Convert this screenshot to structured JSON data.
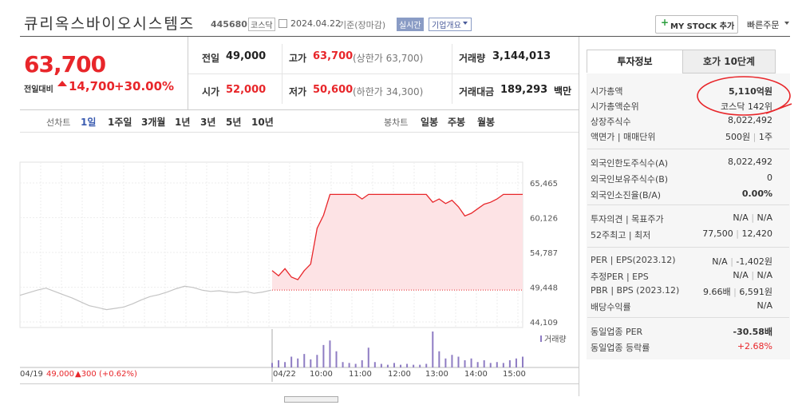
{
  "header": {
    "title": "큐리옥스바이오시스템즈",
    "code": "445680",
    "market": "코스닥",
    "date": "2024.04.22",
    "date_note": "기준(장마감)",
    "realtime": "실시간",
    "company_info": "기업개요",
    "my_stock": "MY STOCK 추가",
    "quick_order": "빠른주문"
  },
  "quote": {
    "price": "63,700",
    "change_label": "전일대비",
    "change": "14,700",
    "change_pct": "+30.00%",
    "table": [
      [
        {
          "label": "전일",
          "value": "49,000"
        },
        {
          "label": "고가",
          "value": "63,700",
          "note": "(상한가 63,700)"
        },
        {
          "label": "거래량",
          "value": "3,144,013"
        }
      ],
      [
        {
          "label": "시가",
          "value": "52,000"
        },
        {
          "label": "저가",
          "value": "50,600",
          "note": "(하한가 34,300)"
        },
        {
          "label": "거래대금",
          "value": "189,293",
          "unit": "백만"
        }
      ]
    ]
  },
  "tabs": {
    "line_chart": "선차트",
    "periods": [
      "1일",
      "1주일",
      "3개월",
      "1년",
      "3년",
      "5년",
      "10년"
    ],
    "candle_chart": "봉차트",
    "candles": [
      "일봉",
      "주봉",
      "월봉"
    ]
  },
  "chart": {
    "ylim": [
      43250,
      68656
    ],
    "yticks": [
      {
        "value": 65465,
        "label": "65,465"
      },
      {
        "value": 60126,
        "label": "60,126"
      },
      {
        "value": 54787,
        "label": "54,787"
      },
      {
        "value": 49448,
        "label": "49,448"
      },
      {
        "value": 44109,
        "label": "44,109"
      }
    ],
    "base": 49000,
    "x_labels": [
      "04/22",
      "10:00",
      "11:00",
      "12:00",
      "13:00",
      "14:00",
      "15:00"
    ],
    "prev_date": "04/19",
    "prev_close": "49,000",
    "prev_change": "▲300 (+0.62%)",
    "volume_label": "거래량",
    "series": [
      {
        "color": "#c4c4c4",
        "values": [
          48200,
          48600,
          49000,
          49300,
          48800,
          48300,
          47800,
          47200,
          46600,
          46300,
          46000,
          46200,
          46400,
          46900,
          47500,
          48000,
          48300,
          48700,
          49200,
          49600,
          49400,
          49000,
          48800,
          48900,
          48700,
          48600,
          48800,
          48500,
          48700,
          49000
        ]
      },
      {
        "color": "#e8262a",
        "fill": "#fde3e5",
        "values": [
          52000,
          51200,
          52300,
          51000,
          50600,
          52000,
          53000,
          58500,
          60500,
          63700,
          63700,
          63700,
          63700,
          63700,
          63000,
          63700,
          63700,
          63700,
          63700,
          63700,
          63700,
          63700,
          63700,
          63700,
          63700,
          62500,
          63000,
          62300,
          62800,
          61800,
          60400,
          60800,
          61500,
          62200,
          62500,
          63000,
          63700,
          63700,
          63700,
          63700
        ]
      }
    ],
    "volume": {
      "color": "#8e7cc3",
      "values": [
        5,
        8,
        6,
        12,
        10,
        15,
        9,
        14,
        25,
        30,
        18,
        6,
        5,
        4,
        8,
        22,
        6,
        4,
        3,
        5,
        3,
        4,
        3,
        3,
        4,
        40,
        18,
        10,
        14,
        12,
        8,
        10,
        6,
        8,
        5,
        6,
        5,
        8,
        10,
        12
      ]
    }
  },
  "info": {
    "tabs": [
      "투자정보",
      "호가 10단계"
    ],
    "groups": [
      [
        {
          "label": "시가총액",
          "values": [
            "5,110억원"
          ]
        },
        {
          "label": "시가총액순위",
          "values": [
            "코스닥 142위"
          ]
        },
        {
          "label": "상장주식수",
          "values": [
            "8,022,492"
          ]
        },
        {
          "label": "액면가 | 매매단위",
          "values": [
            "500원",
            "1주"
          ]
        }
      ],
      [
        {
          "label": "외국인한도주식수(A)",
          "values": [
            "8,022,492"
          ]
        },
        {
          "label": "외국인보유주식수(B)",
          "values": [
            "0"
          ]
        },
        {
          "label": "외국인소진율(B/A)",
          "values": [
            "0.00%"
          ]
        }
      ],
      [
        {
          "label": "투자의견 | 목표주가",
          "values": [
            "N/A",
            "N/A"
          ]
        },
        {
          "label": "52주최고 | 최저",
          "values": [
            "77,500",
            "12,420"
          ]
        }
      ],
      [
        {
          "label": "PER | EPS(2023.12)",
          "values": [
            "N/A",
            "-1,402원"
          ]
        },
        {
          "label": "추정PER | EPS",
          "values": [
            "N/A",
            "N/A"
          ]
        },
        {
          "label": "PBR | BPS (2023.12)",
          "values": [
            "9.66배",
            "6,591원"
          ]
        },
        {
          "label": "배당수익률",
          "values": [
            "N/A"
          ]
        }
      ],
      [
        {
          "label": "동일업종 PER",
          "values": [
            "-30.58배"
          ]
        },
        {
          "label": "동일업종 등락률",
          "values": [
            "+2.68%"
          ]
        }
      ]
    ]
  }
}
